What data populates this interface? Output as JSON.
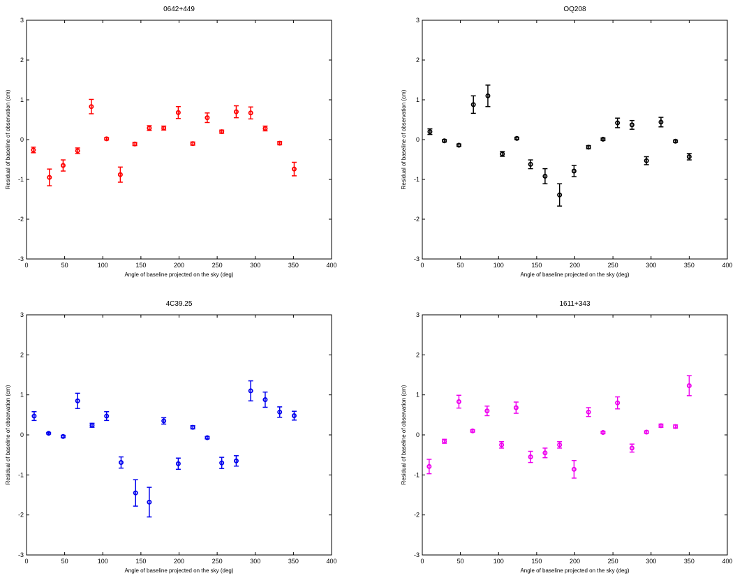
{
  "chart_data": [
    {
      "type": "scatter",
      "title": "0642+449",
      "xlabel": "Angle of baseline projected on the sky (deg)",
      "ylabel": "Residual of baseline of observation (cm)",
      "xlim": [
        0,
        400
      ],
      "ylim": [
        -3,
        3
      ],
      "xticks": [
        "0",
        "50",
        "100",
        "150",
        "200",
        "250",
        "300",
        "350",
        "400"
      ],
      "yticks": [
        "-3",
        "-2",
        "-1",
        "0",
        "1",
        "2",
        "3"
      ],
      "grid": false,
      "color": "#ff0000",
      "series": [
        {
          "x": [
            9,
            30,
            48,
            67,
            85,
            105,
            123,
            142,
            161,
            180,
            199,
            218,
            237,
            256,
            275,
            294,
            313,
            332,
            351
          ],
          "y": [
            -0.26,
            -0.95,
            -0.65,
            -0.28,
            0.83,
            0.02,
            -0.88,
            -0.11,
            0.29,
            0.29,
            0.68,
            -0.1,
            0.55,
            0.2,
            0.7,
            0.67,
            0.28,
            -0.09,
            -0.74
          ],
          "err": [
            0.07,
            0.21,
            0.14,
            0.07,
            0.18,
            0.03,
            0.19,
            0.04,
            0.06,
            0.05,
            0.15,
            0.04,
            0.12,
            0.04,
            0.15,
            0.15,
            0.06,
            0.04,
            0.17
          ]
        }
      ]
    },
    {
      "type": "scatter",
      "title": "OQ208",
      "xlabel": "Angle of baseline projected on the sky (deg)",
      "ylabel": "Residual of baseline of observation (cm)",
      "xlim": [
        0,
        400
      ],
      "ylim": [
        -3,
        3
      ],
      "xticks": [
        "0",
        "50",
        "100",
        "150",
        "200",
        "250",
        "300",
        "350",
        "400"
      ],
      "yticks": [
        "-3",
        "-2",
        "-1",
        "0",
        "1",
        "2",
        "3"
      ],
      "grid": false,
      "color": "#000000",
      "series": [
        {
          "x": [
            10,
            29,
            48,
            67,
            86,
            105,
            124,
            142,
            161,
            180,
            199,
            218,
            237,
            256,
            275,
            294,
            313,
            332,
            350
          ],
          "y": [
            0.2,
            -0.03,
            -0.14,
            0.88,
            1.1,
            -0.36,
            0.03,
            -0.62,
            -0.92,
            -1.39,
            -0.79,
            -0.19,
            0.01,
            0.42,
            0.37,
            -0.53,
            0.44,
            -0.04,
            -0.43
          ],
          "err": [
            0.07,
            0.03,
            0.03,
            0.22,
            0.27,
            0.06,
            0.03,
            0.11,
            0.19,
            0.28,
            0.14,
            0.04,
            0.03,
            0.12,
            0.11,
            0.1,
            0.12,
            0.03,
            0.08
          ]
        }
      ]
    },
    {
      "type": "scatter",
      "title": "4C39.25",
      "xlabel": "Angle of baseline projected on the sky (deg)",
      "ylabel": "Residual of baseline of observation (cm)",
      "xlim": [
        0,
        400
      ],
      "ylim": [
        -3,
        3
      ],
      "xticks": [
        "0",
        "50",
        "100",
        "150",
        "200",
        "250",
        "300",
        "350",
        "400"
      ],
      "yticks": [
        "-3",
        "-2",
        "-1",
        "0",
        "1",
        "2",
        "3"
      ],
      "grid": false,
      "color": "#0000ee",
      "series": [
        {
          "x": [
            10,
            29,
            48,
            67,
            86,
            105,
            124,
            143,
            161,
            180,
            199,
            218,
            237,
            256,
            275,
            294,
            313,
            332,
            351
          ],
          "y": [
            0.47,
            0.04,
            -0.04,
            0.85,
            0.24,
            0.47,
            -0.69,
            -1.45,
            -1.68,
            0.35,
            -0.72,
            0.19,
            -0.07,
            -0.7,
            -0.65,
            1.1,
            0.88,
            0.57,
            0.48
          ],
          "err": [
            0.11,
            0.02,
            0.03,
            0.19,
            0.05,
            0.11,
            0.14,
            0.33,
            0.37,
            0.08,
            0.14,
            0.04,
            0.03,
            0.14,
            0.13,
            0.25,
            0.19,
            0.13,
            0.11
          ]
        }
      ]
    },
    {
      "type": "scatter",
      "title": "1611+343",
      "xlabel": "Angle of baseline projected on the sky (deg)",
      "ylabel": "Residual of baseline of observation (cm)",
      "xlim": [
        0,
        400
      ],
      "ylim": [
        -3,
        3
      ],
      "xticks": [
        "0",
        "50",
        "100",
        "150",
        "200",
        "250",
        "300",
        "350",
        "400"
      ],
      "yticks": [
        "-3",
        "-2",
        "-1",
        "0",
        "1",
        "2",
        "3"
      ],
      "grid": false,
      "color": "#ee00ee",
      "series": [
        {
          "x": [
            9,
            29,
            48,
            66,
            85,
            104,
            123,
            142,
            161,
            180,
            199,
            218,
            237,
            256,
            275,
            294,
            313,
            332,
            350
          ],
          "y": [
            -0.79,
            -0.16,
            0.83,
            0.1,
            0.6,
            -0.25,
            0.68,
            -0.55,
            -0.45,
            -0.25,
            -0.86,
            0.57,
            0.06,
            0.8,
            -0.33,
            0.07,
            0.23,
            0.21,
            1.23
          ],
          "err": [
            0.18,
            0.05,
            0.16,
            0.03,
            0.12,
            0.08,
            0.14,
            0.14,
            0.12,
            0.08,
            0.22,
            0.11,
            0.03,
            0.15,
            0.1,
            0.03,
            0.04,
            0.04,
            0.25
          ]
        }
      ]
    }
  ]
}
